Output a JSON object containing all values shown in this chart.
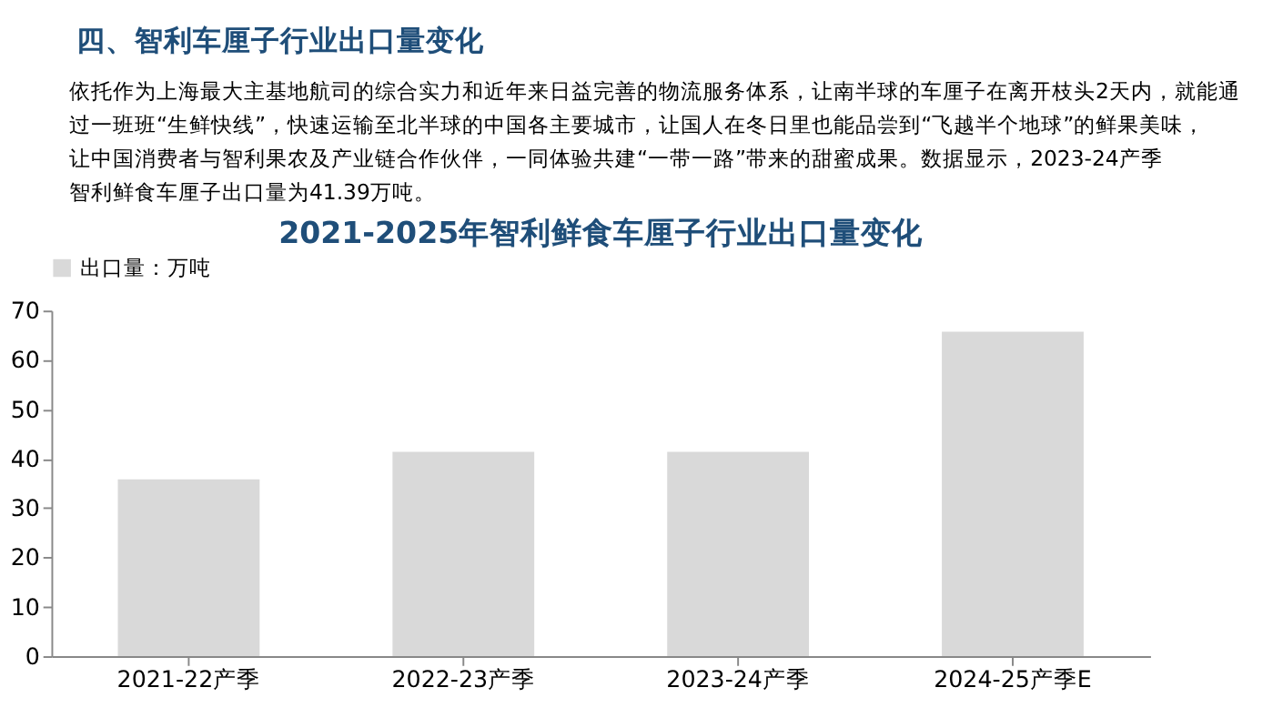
{
  "chart_data": {
    "type": "bar",
    "title": "2021-2025年智利鲜食车厘子行业出口量变化",
    "annotations": [
      "四、智利车厘子行业出口量变化",
      "依托作为上海最大主基地航司的综合实力和近年来日益完善的物流服务体系，让南半球的车厘子在离开枝头2天内，就能通过一班班“生鲜快线”，快速运输至北半球的中国各主要城市，让国人在冬日里也能品尝到“飞越半个地球”的鲜果美味，让中国消费者与智利果农及产业链合作伙伴，一同体验共建“一带一路”带来的甜蜜成果。数据显示，2023-24产季智利鲜食车厘子出口量为41.39万吨。"
    ],
    "categories": [
      "2021-22产季",
      "2022-23产季",
      "2023-24产季",
      "2024-25产季E"
    ],
    "series": [
      {
        "name": "出口量：万吨",
        "color": "#d9d9d9",
        "values": [
          35.8,
          41.4,
          41.4,
          65.7
        ]
      }
    ],
    "ylim": [
      0,
      70
    ],
    "yticks": [
      0,
      10,
      20,
      30,
      40,
      50,
      60,
      70
    ],
    "grid": false,
    "legend": "top"
  }
}
